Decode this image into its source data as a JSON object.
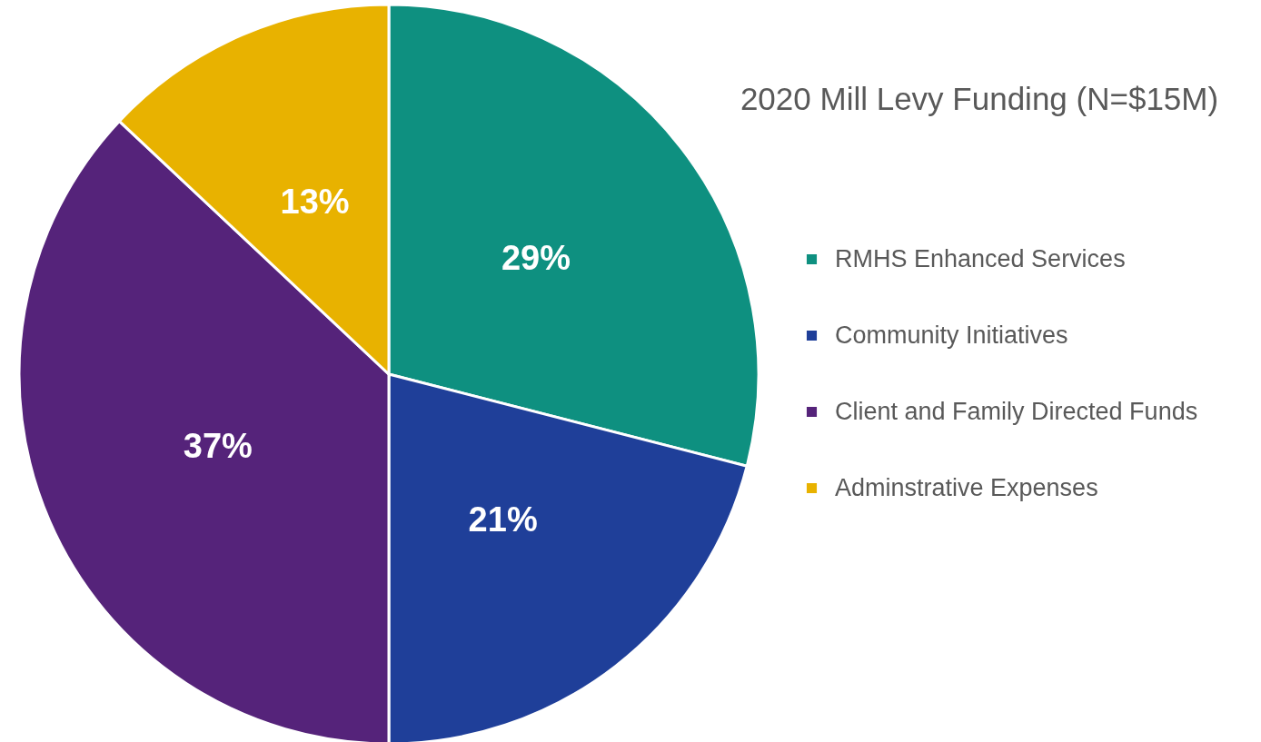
{
  "chart_data": {
    "type": "pie",
    "title": "2020 Mill Levy Funding (N=$15M)",
    "categories": [
      "RMHS Enhanced Services",
      "Community Initiatives",
      "Client and Family Directed Funds",
      "Adminstrative Expenses"
    ],
    "values": [
      29,
      21,
      37,
      13
    ],
    "colors": [
      "#0e9080",
      "#1f3f99",
      "#55237a",
      "#e8b200"
    ],
    "value_labels": [
      "29%",
      "21%",
      "37%",
      "13%"
    ],
    "legend": "right"
  }
}
